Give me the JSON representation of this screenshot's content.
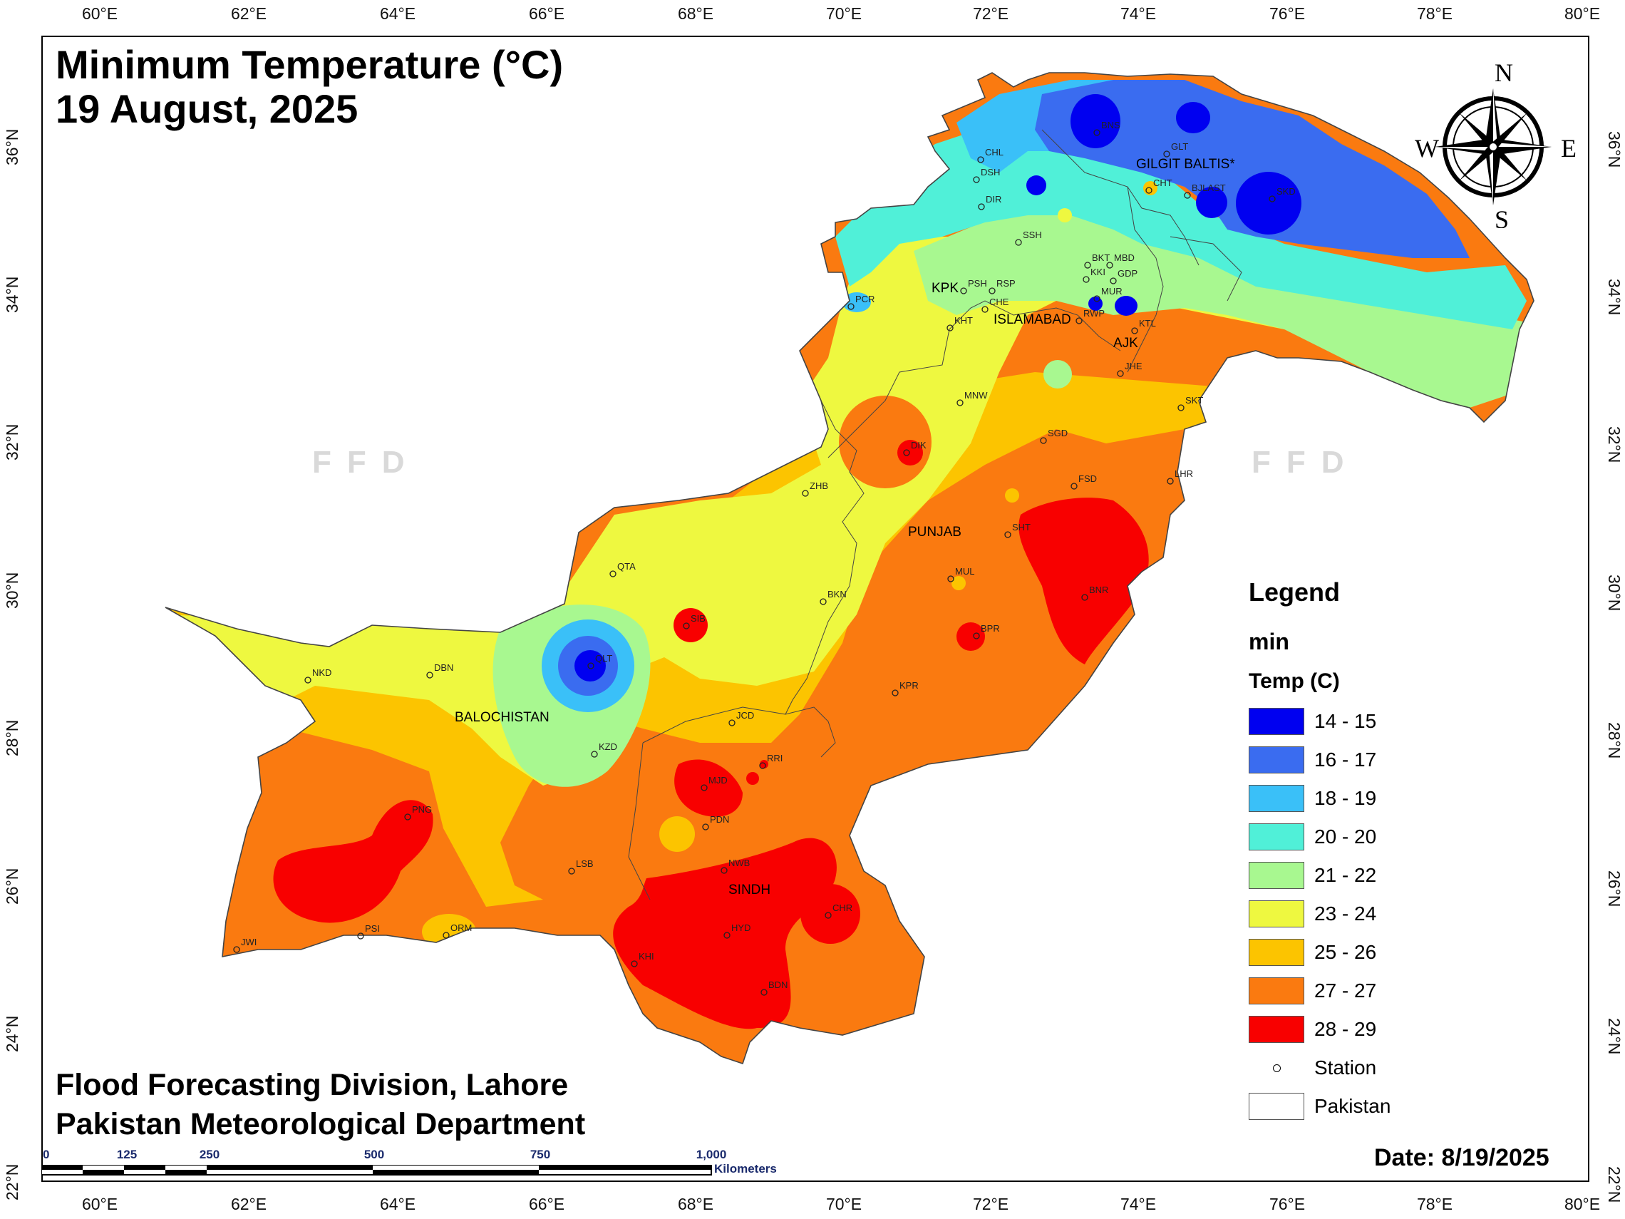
{
  "title": {
    "line1": "Minimum Temperature (°C)",
    "line2": "19 August, 2025"
  },
  "credit": {
    "line1": "Flood Forecasting Division, Lahore",
    "line2": "Pakistan Meteorological Department"
  },
  "date": "Date: 8/19/2025",
  "watermark": "FFD",
  "compass": {
    "n": "N",
    "s": "S",
    "e": "E",
    "w": "W"
  },
  "axes": {
    "lon_labels": [
      "60°E",
      "62°E",
      "64°E",
      "66°E",
      "68°E",
      "70°E",
      "72°E",
      "74°E",
      "76°E",
      "78°E",
      "80°E"
    ],
    "lat_labels": [
      "36°N",
      "34°N",
      "32°N",
      "30°N",
      "28°N",
      "26°N",
      "24°N",
      "22°N"
    ]
  },
  "legend": {
    "title": "Legend",
    "layer": "min",
    "field": "Temp (C)",
    "classes": [
      {
        "label": "14 - 15",
        "color": "#0000f0"
      },
      {
        "label": "16 - 17",
        "color": "#3a6cf0"
      },
      {
        "label": "18 - 19",
        "color": "#3ac0f8"
      },
      {
        "label": "20 - 20",
        "color": "#50f0d8"
      },
      {
        "label": "21 - 22",
        "color": "#a8f890"
      },
      {
        "label": "23 - 24",
        "color": "#eef840"
      },
      {
        "label": "25 - 26",
        "color": "#fcc400"
      },
      {
        "label": "27 - 27",
        "color": "#fa7a10"
      },
      {
        "label": "28 - 29",
        "color": "#f80000"
      }
    ],
    "station_label": "Station",
    "boundary_label": "Pakistan"
  },
  "regions": [
    "GILGIT BALTIS*",
    "KPK",
    "ISLAMABAD",
    "AJK",
    "PUNJAB",
    "BALOCHISTAN",
    "SINDH"
  ],
  "stations": [
    "CHL",
    "DSH",
    "DIR",
    "SSH",
    "PCR",
    "PSH",
    "RSP",
    "CHE",
    "KHT",
    "BKT",
    "MBD",
    "KKI",
    "GDP",
    "MUR",
    "RWP",
    "KTL",
    "JHE",
    "SKT",
    "GLT",
    "BJLAST",
    "CHT",
    "SKD",
    "BNS",
    "MNW",
    "SGD",
    "DIK",
    "ZHB",
    "FSD",
    "LHR",
    "SHT",
    "QTA",
    "MUL",
    "BKN",
    "BNR",
    "SIB",
    "BPR",
    "NKD",
    "DBN",
    "QLT",
    "KPR",
    "JCD",
    "KZD",
    "RRI",
    "MJD",
    "PNG",
    "PDN",
    "LSB",
    "NWB",
    "PSI",
    "JWI",
    "ORM",
    "HYD",
    "CHR",
    "KHI",
    "BDN"
  ],
  "scale": {
    "ticks": [
      "0",
      "125",
      "250",
      "500",
      "750",
      "1,000"
    ],
    "units": "Kilometers"
  }
}
